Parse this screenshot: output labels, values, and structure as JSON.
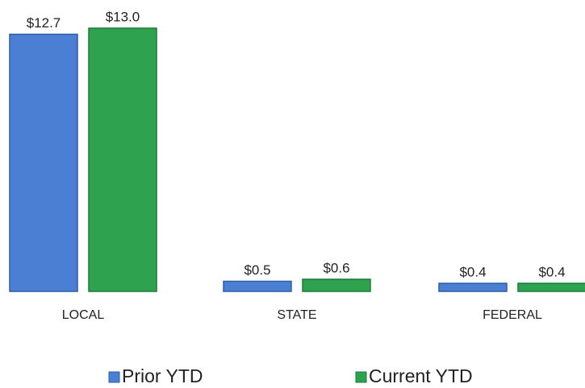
{
  "chart_data": {
    "type": "bar",
    "categories": [
      "LOCAL",
      "STATE",
      "FEDERAL"
    ],
    "series": [
      {
        "name": "Prior YTD",
        "color": "#4a7fd4",
        "values": [
          12.7,
          0.5,
          0.4
        ],
        "value_labels": [
          "$12.7",
          "$0.5",
          "$0.4"
        ]
      },
      {
        "name": "Current YTD",
        "color": "#2fa24f",
        "values": [
          13.0,
          0.6,
          0.4
        ],
        "value_labels": [
          "$13.0",
          "$0.6",
          "$0.4"
        ]
      }
    ]
  }
}
